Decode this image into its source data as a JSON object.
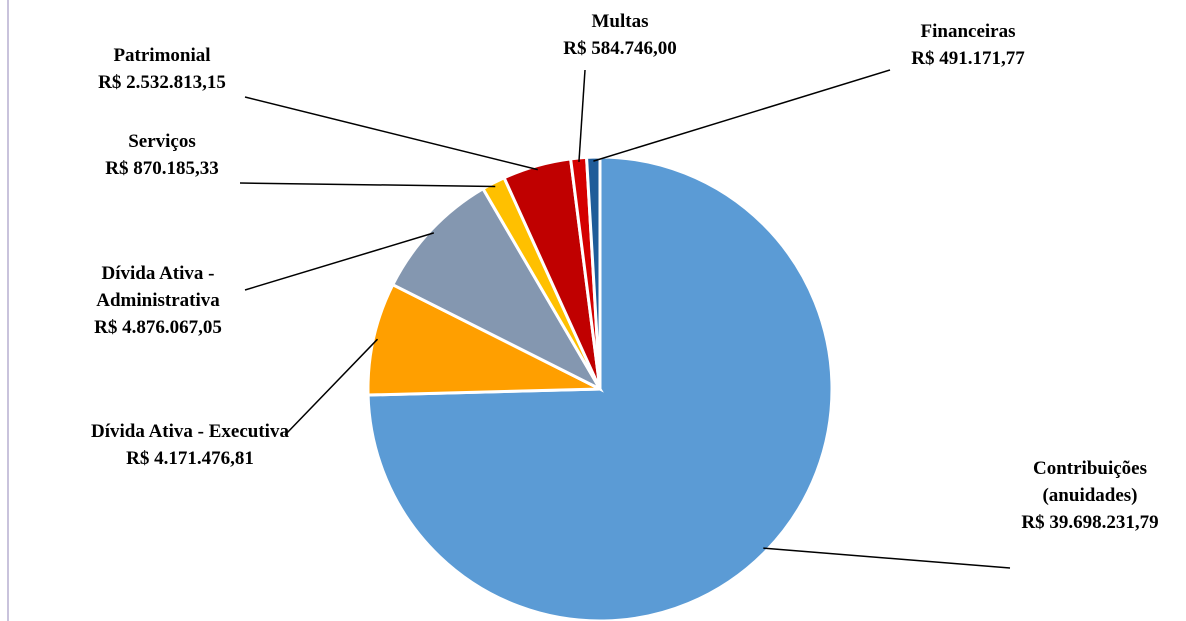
{
  "chart_data": {
    "type": "pie",
    "categories": [
      "Contribuições (anuidades)",
      "Dívida Ativa - Executiva",
      "Dívida Ativa - Administrativa",
      "Serviços",
      "Patrimonial",
      "Multas",
      "Financeiras"
    ],
    "values": [
      39698231.79,
      4171476.81,
      4876067.05,
      870185.33,
      2532813.15,
      584746.0,
      491171.77
    ],
    "value_labels": [
      "R$ 39.698.231,79",
      "R$ 4.171.476,81",
      "R$ 4.876.067,05",
      "R$ 870.185,33",
      "R$ 2.532.813,15",
      "R$ 584.746,00",
      "R$ 491.171,77"
    ],
    "colors": [
      "#5b9bd5",
      "#ff9f00",
      "#8497b0",
      "#ffc000",
      "#c00000",
      "#d40000",
      "#1f5c99"
    ]
  }
}
